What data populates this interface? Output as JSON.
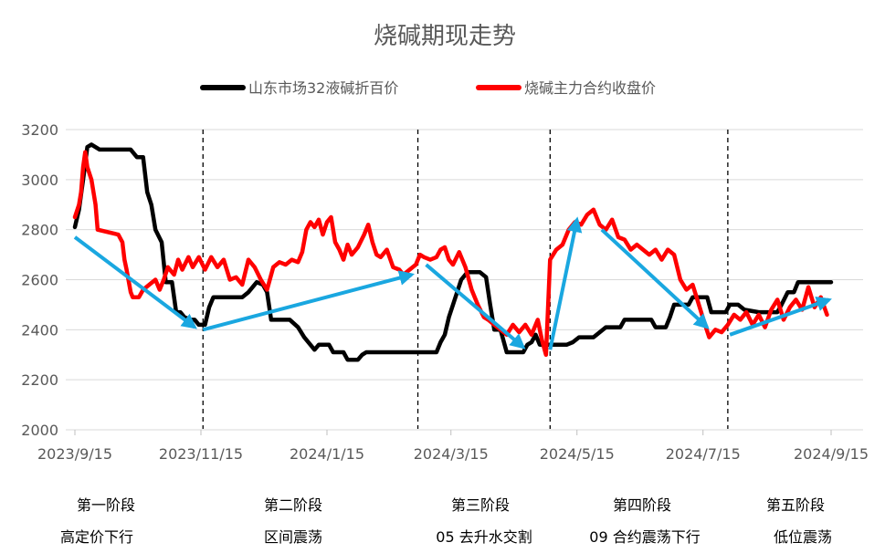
{
  "chart_data": {
    "type": "line",
    "title": "烧碱期现走势",
    "xlabel": "",
    "ylabel": "",
    "ylim": [
      2000,
      3200
    ],
    "yticks": [
      2000,
      2200,
      2400,
      2600,
      2800,
      3000,
      3200
    ],
    "xlim": [
      "2023-09-15",
      "2024-09-15"
    ],
    "xticks": [
      "2023/9/15",
      "2023/11/15",
      "2024/1/15",
      "2024/3/15",
      "2024/5/15",
      "2024/7/15",
      "2024/9/15"
    ],
    "grid": "horizontal",
    "legend_position": "top",
    "series": [
      {
        "name": "山东市场32液碱折百价",
        "color": "#000000",
        "points": [
          [
            "2023-09-15",
            2810
          ],
          [
            "2023-09-17",
            2880
          ],
          [
            "2023-09-19",
            3000
          ],
          [
            "2023-09-21",
            3130
          ],
          [
            "2023-09-23",
            3140
          ],
          [
            "2023-09-27",
            3120
          ],
          [
            "2023-10-05",
            3120
          ],
          [
            "2023-10-12",
            3120
          ],
          [
            "2023-10-15",
            3090
          ],
          [
            "2023-10-18",
            3090
          ],
          [
            "2023-10-20",
            2950
          ],
          [
            "2023-10-22",
            2900
          ],
          [
            "2023-10-24",
            2800
          ],
          [
            "2023-10-27",
            2750
          ],
          [
            "2023-10-29",
            2590
          ],
          [
            "2023-11-01",
            2590
          ],
          [
            "2023-11-03",
            2470
          ],
          [
            "2023-11-05",
            2470
          ],
          [
            "2023-11-07",
            2450
          ],
          [
            "2023-11-10",
            2440
          ],
          [
            "2023-11-12",
            2440
          ],
          [
            "2023-11-14",
            2420
          ],
          [
            "2023-11-17",
            2420
          ],
          [
            "2023-11-19",
            2490
          ],
          [
            "2023-11-21",
            2530
          ],
          [
            "2023-12-05",
            2530
          ],
          [
            "2023-12-08",
            2550
          ],
          [
            "2023-12-12",
            2590
          ],
          [
            "2023-12-15",
            2580
          ],
          [
            "2023-12-17",
            2550
          ],
          [
            "2023-12-19",
            2440
          ],
          [
            "2023-12-28",
            2440
          ],
          [
            "2024-01-01",
            2410
          ],
          [
            "2024-01-04",
            2370
          ],
          [
            "2024-01-07",
            2340
          ],
          [
            "2024-01-09",
            2320
          ],
          [
            "2024-01-11",
            2340
          ],
          [
            "2024-01-16",
            2340
          ],
          [
            "2024-01-18",
            2310
          ],
          [
            "2024-01-23",
            2310
          ],
          [
            "2024-01-25",
            2280
          ],
          [
            "2024-01-30",
            2280
          ],
          [
            "2024-02-01",
            2300
          ],
          [
            "2024-02-03",
            2310
          ],
          [
            "2024-02-20",
            2310
          ],
          [
            "2024-03-05",
            2310
          ],
          [
            "2024-03-08",
            2310
          ],
          [
            "2024-03-10",
            2350
          ],
          [
            "2024-03-12",
            2380
          ],
          [
            "2024-03-14",
            2450
          ],
          [
            "2024-03-16",
            2500
          ],
          [
            "2024-03-18",
            2550
          ],
          [
            "2024-03-20",
            2600
          ],
          [
            "2024-03-23",
            2630
          ],
          [
            "2024-03-29",
            2630
          ],
          [
            "2024-04-01",
            2610
          ],
          [
            "2024-04-03",
            2500
          ],
          [
            "2024-04-05",
            2400
          ],
          [
            "2024-04-08",
            2400
          ],
          [
            "2024-04-11",
            2310
          ],
          [
            "2024-04-19",
            2310
          ],
          [
            "2024-04-21",
            2340
          ],
          [
            "2024-04-23",
            2350
          ],
          [
            "2024-04-25",
            2380
          ],
          [
            "2024-04-27",
            2340
          ],
          [
            "2024-05-10",
            2340
          ],
          [
            "2024-05-13",
            2350
          ],
          [
            "2024-05-16",
            2370
          ],
          [
            "2024-05-23",
            2370
          ],
          [
            "2024-05-26",
            2390
          ],
          [
            "2024-05-29",
            2410
          ],
          [
            "2024-06-05",
            2410
          ],
          [
            "2024-06-07",
            2440
          ],
          [
            "2024-06-20",
            2440
          ],
          [
            "2024-06-22",
            2410
          ],
          [
            "2024-06-27",
            2410
          ],
          [
            "2024-06-29",
            2450
          ],
          [
            "2024-07-01",
            2500
          ],
          [
            "2024-07-08",
            2500
          ],
          [
            "2024-07-10",
            2530
          ],
          [
            "2024-07-17",
            2530
          ],
          [
            "2024-07-19",
            2470
          ],
          [
            "2024-07-26",
            2470
          ],
          [
            "2024-07-28",
            2500
          ],
          [
            "2024-08-01",
            2500
          ],
          [
            "2024-08-04",
            2480
          ],
          [
            "2024-08-11",
            2470
          ],
          [
            "2024-08-20",
            2470
          ],
          [
            "2024-08-22",
            2500
          ],
          [
            "2024-08-25",
            2550
          ],
          [
            "2024-08-28",
            2550
          ],
          [
            "2024-08-30",
            2590
          ],
          [
            "2024-09-15",
            2590
          ]
        ]
      },
      {
        "name": "烧碱主力合约收盘价",
        "color": "#ff0000",
        "points": [
          [
            "2023-09-15",
            2850
          ],
          [
            "2023-09-17",
            2900
          ],
          [
            "2023-09-18",
            2950
          ],
          [
            "2023-09-19",
            3050
          ],
          [
            "2023-09-20",
            3110
          ],
          [
            "2023-09-21",
            3050
          ],
          [
            "2023-09-23",
            3000
          ],
          [
            "2023-09-25",
            2900
          ],
          [
            "2023-09-26",
            2800
          ],
          [
            "2023-10-06",
            2780
          ],
          [
            "2023-10-08",
            2750
          ],
          [
            "2023-10-09",
            2680
          ],
          [
            "2023-10-10",
            2640
          ],
          [
            "2023-10-12",
            2550
          ],
          [
            "2023-10-13",
            2530
          ],
          [
            "2023-10-16",
            2530
          ],
          [
            "2023-10-18",
            2560
          ],
          [
            "2023-10-21",
            2580
          ],
          [
            "2023-10-24",
            2600
          ],
          [
            "2023-10-26",
            2560
          ],
          [
            "2023-10-28",
            2600
          ],
          [
            "2023-10-30",
            2650
          ],
          [
            "2023-11-02",
            2620
          ],
          [
            "2023-11-04",
            2680
          ],
          [
            "2023-11-06",
            2640
          ],
          [
            "2023-11-09",
            2690
          ],
          [
            "2023-11-11",
            2650
          ],
          [
            "2023-11-14",
            2690
          ],
          [
            "2023-11-17",
            2640
          ],
          [
            "2023-11-20",
            2690
          ],
          [
            "2023-11-23",
            2650
          ],
          [
            "2023-11-26",
            2680
          ],
          [
            "2023-11-29",
            2600
          ],
          [
            "2023-12-02",
            2610
          ],
          [
            "2023-12-05",
            2580
          ],
          [
            "2023-12-08",
            2680
          ],
          [
            "2023-12-11",
            2650
          ],
          [
            "2023-12-14",
            2600
          ],
          [
            "2023-12-17",
            2560
          ],
          [
            "2023-12-20",
            2650
          ],
          [
            "2023-12-23",
            2670
          ],
          [
            "2023-12-26",
            2660
          ],
          [
            "2023-12-29",
            2680
          ],
          [
            "2024-01-01",
            2670
          ],
          [
            "2024-01-03",
            2710
          ],
          [
            "2024-01-05",
            2800
          ],
          [
            "2024-01-07",
            2830
          ],
          [
            "2024-01-09",
            2810
          ],
          [
            "2024-01-11",
            2840
          ],
          [
            "2024-01-13",
            2780
          ],
          [
            "2024-01-15",
            2830
          ],
          [
            "2024-01-17",
            2850
          ],
          [
            "2024-01-19",
            2750
          ],
          [
            "2024-01-21",
            2720
          ],
          [
            "2024-01-23",
            2680
          ],
          [
            "2024-01-25",
            2740
          ],
          [
            "2024-01-27",
            2700
          ],
          [
            "2024-01-30",
            2730
          ],
          [
            "2024-02-02",
            2780
          ],
          [
            "2024-02-04",
            2820
          ],
          [
            "2024-02-06",
            2750
          ],
          [
            "2024-02-08",
            2700
          ],
          [
            "2024-02-10",
            2690
          ],
          [
            "2024-02-13",
            2720
          ],
          [
            "2024-02-16",
            2650
          ],
          [
            "2024-02-19",
            2640
          ],
          [
            "2024-02-21",
            2620
          ],
          [
            "2024-02-24",
            2640
          ],
          [
            "2024-02-27",
            2660
          ],
          [
            "2024-02-29",
            2700
          ],
          [
            "2024-03-02",
            2690
          ],
          [
            "2024-03-05",
            2680
          ],
          [
            "2024-03-08",
            2690
          ],
          [
            "2024-03-10",
            2720
          ],
          [
            "2024-03-12",
            2730
          ],
          [
            "2024-03-14",
            2680
          ],
          [
            "2024-03-16",
            2660
          ],
          [
            "2024-03-19",
            2710
          ],
          [
            "2024-03-22",
            2650
          ],
          [
            "2024-03-25",
            2560
          ],
          [
            "2024-03-28",
            2500
          ],
          [
            "2024-03-31",
            2450
          ],
          [
            "2024-04-02",
            2440
          ],
          [
            "2024-04-05",
            2420
          ],
          [
            "2024-04-08",
            2400
          ],
          [
            "2024-04-11",
            2380
          ],
          [
            "2024-04-14",
            2420
          ],
          [
            "2024-04-17",
            2390
          ],
          [
            "2024-04-20",
            2420
          ],
          [
            "2024-04-23",
            2380
          ],
          [
            "2024-04-26",
            2440
          ],
          [
            "2024-04-28",
            2360
          ],
          [
            "2024-04-30",
            2300
          ],
          [
            "2024-05-02",
            2680
          ],
          [
            "2024-05-05",
            2720
          ],
          [
            "2024-05-08",
            2740
          ],
          [
            "2024-05-11",
            2800
          ],
          [
            "2024-05-14",
            2830
          ],
          [
            "2024-05-17",
            2820
          ],
          [
            "2024-05-20",
            2860
          ],
          [
            "2024-05-23",
            2880
          ],
          [
            "2024-05-26",
            2820
          ],
          [
            "2024-05-29",
            2800
          ],
          [
            "2024-06-01",
            2840
          ],
          [
            "2024-06-04",
            2770
          ],
          [
            "2024-06-07",
            2760
          ],
          [
            "2024-06-10",
            2720
          ],
          [
            "2024-06-13",
            2740
          ],
          [
            "2024-06-16",
            2720
          ],
          [
            "2024-06-19",
            2700
          ],
          [
            "2024-06-22",
            2720
          ],
          [
            "2024-06-25",
            2680
          ],
          [
            "2024-06-28",
            2720
          ],
          [
            "2024-07-01",
            2700
          ],
          [
            "2024-07-04",
            2600
          ],
          [
            "2024-07-07",
            2560
          ],
          [
            "2024-07-10",
            2580
          ],
          [
            "2024-07-13",
            2500
          ],
          [
            "2024-07-16",
            2420
          ],
          [
            "2024-07-18",
            2370
          ],
          [
            "2024-07-21",
            2400
          ],
          [
            "2024-07-24",
            2390
          ],
          [
            "2024-07-27",
            2420
          ],
          [
            "2024-07-30",
            2460
          ],
          [
            "2024-08-02",
            2440
          ],
          [
            "2024-08-05",
            2470
          ],
          [
            "2024-08-08",
            2420
          ],
          [
            "2024-08-11",
            2460
          ],
          [
            "2024-08-14",
            2410
          ],
          [
            "2024-08-17",
            2480
          ],
          [
            "2024-08-20",
            2520
          ],
          [
            "2024-08-23",
            2440
          ],
          [
            "2024-08-26",
            2490
          ],
          [
            "2024-08-29",
            2520
          ],
          [
            "2024-09-01",
            2480
          ],
          [
            "2024-09-04",
            2570
          ],
          [
            "2024-09-07",
            2490
          ],
          [
            "2024-09-10",
            2530
          ],
          [
            "2024-09-13",
            2460
          ]
        ]
      }
    ],
    "phase_dividers": [
      "2023-11-16",
      "2024-02-28",
      "2024-05-02",
      "2024-07-27"
    ],
    "trend_arrows": {
      "color": "#1aa7e0",
      "segments": [
        [
          [
            "2023-09-15",
            2770
          ],
          [
            "2023-11-12",
            2410
          ]
        ],
        [
          [
            "2023-11-16",
            2400
          ],
          [
            "2024-02-25",
            2620
          ]
        ],
        [
          [
            "2024-03-03",
            2660
          ],
          [
            "2024-04-19",
            2330
          ]
        ],
        [
          [
            "2024-05-02",
            2320
          ],
          [
            "2024-05-15",
            2840
          ]
        ],
        [
          [
            "2024-05-27",
            2800
          ],
          [
            "2024-07-17",
            2410
          ]
        ],
        [
          [
            "2024-07-28",
            2380
          ],
          [
            "2024-09-14",
            2520
          ]
        ]
      ]
    },
    "phases": [
      {
        "name": "第一阶段",
        "desc": "高定价下行"
      },
      {
        "name": "第二阶段",
        "desc": "区间震荡"
      },
      {
        "name": "第三阶段",
        "desc": "05 去升水交割"
      },
      {
        "name": "第四阶段",
        "desc": "09 合约震荡下行"
      },
      {
        "name": "第五阶段",
        "desc": "低位震荡"
      }
    ]
  }
}
